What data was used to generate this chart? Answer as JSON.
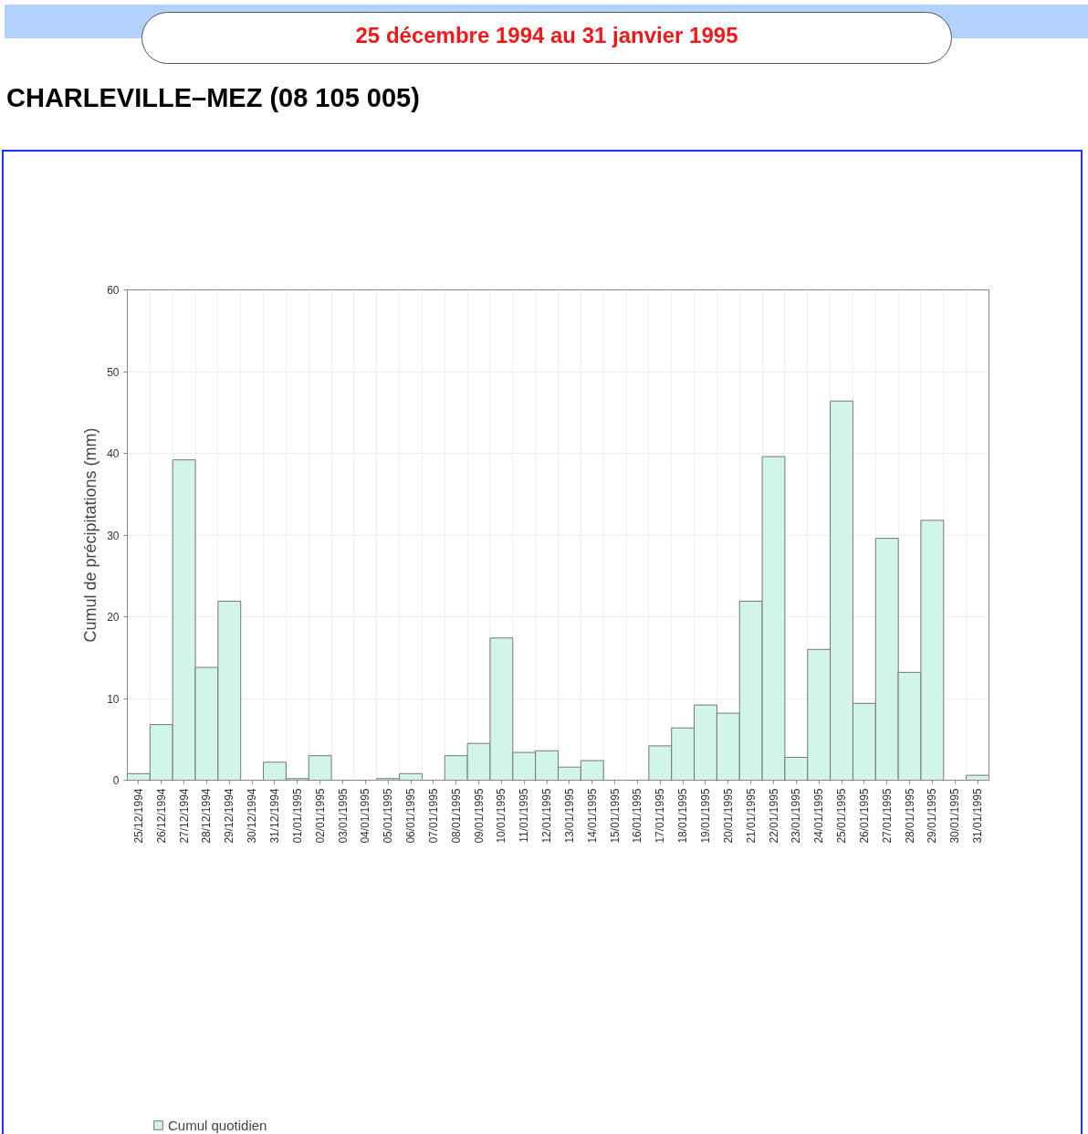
{
  "chart_data": {
    "type": "bar",
    "title": "25 décembre 1994 au 31 janvier 1995",
    "subtitle": "CHARLEVILLE–MEZ (08 105 005)",
    "ylabel": "Cumul de précipitations (mm)",
    "categories": [
      "25/12/1994",
      "26/12/1994",
      "27/12/1994",
      "28/12/1994",
      "29/12/1994",
      "30/12/1994",
      "31/12/1994",
      "01/01/1995",
      "02/01/1995",
      "03/01/1995",
      "04/01/1995",
      "05/01/1995",
      "06/01/1995",
      "07/01/1995",
      "08/01/1995",
      "09/01/1995",
      "10/01/1995",
      "11/01/1995",
      "12/01/1995",
      "13/01/1995",
      "14/01/1995",
      "15/01/1995",
      "16/01/1995",
      "17/01/1995",
      "18/01/1995",
      "19/01/1995",
      "20/01/1995",
      "21/01/1995",
      "22/01/1995",
      "23/01/1995",
      "24/01/1995",
      "25/01/1995",
      "26/01/1995",
      "27/01/1995",
      "28/01/1995",
      "29/01/1995",
      "30/01/1995",
      "31/01/1995"
    ],
    "series": [
      {
        "name": "Cumul quotidien",
        "color": "#d1f5ea",
        "values": [
          0.8,
          6.8,
          39.2,
          13.8,
          21.9,
          0,
          2.2,
          0.2,
          3.0,
          0,
          0,
          0.2,
          0.8,
          0,
          3.0,
          4.5,
          17.4,
          3.4,
          3.6,
          1.6,
          2.4,
          0,
          0,
          4.2,
          6.4,
          9.2,
          8.2,
          21.9,
          39.6,
          2.8,
          16.0,
          46.4,
          9.4,
          29.6,
          13.2,
          31.8,
          0,
          0.6
        ]
      }
    ],
    "ylim": [
      0,
      60
    ],
    "yticks": [
      0,
      10,
      20,
      30,
      40,
      50,
      60
    ],
    "grid": true,
    "legend": "bottom left"
  }
}
